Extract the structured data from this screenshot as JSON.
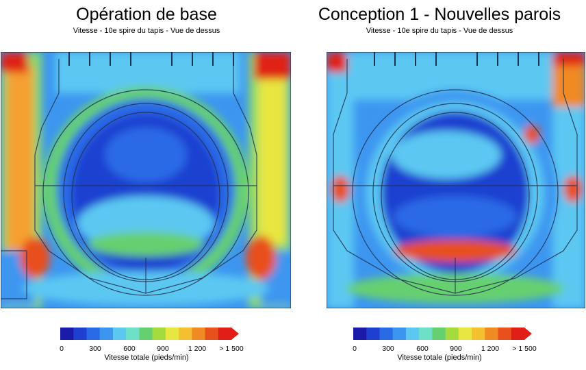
{
  "panels": [
    {
      "title": "Opération de base",
      "subtitle": "Vitesse - 10e spire du tapis - Vue de dessus"
    },
    {
      "title": "Conception 1 - Nouvelles parois",
      "subtitle": "Vitesse - 10e spire du tapis - Vue de dessus"
    }
  ],
  "colorbar": {
    "label": "Vitesse totale (pieds/min)",
    "ticks": [
      "0",
      "300",
      "600",
      "900",
      "1 200",
      "> 1 500"
    ],
    "colors": [
      "#1a1aa8",
      "#1f3fd0",
      "#2a6ae6",
      "#3c96f0",
      "#5cc8f2",
      "#6ee0c8",
      "#66d070",
      "#a4dc40",
      "#e8e640",
      "#f4c030",
      "#f08a22",
      "#e8501c",
      "#e02018"
    ]
  }
}
